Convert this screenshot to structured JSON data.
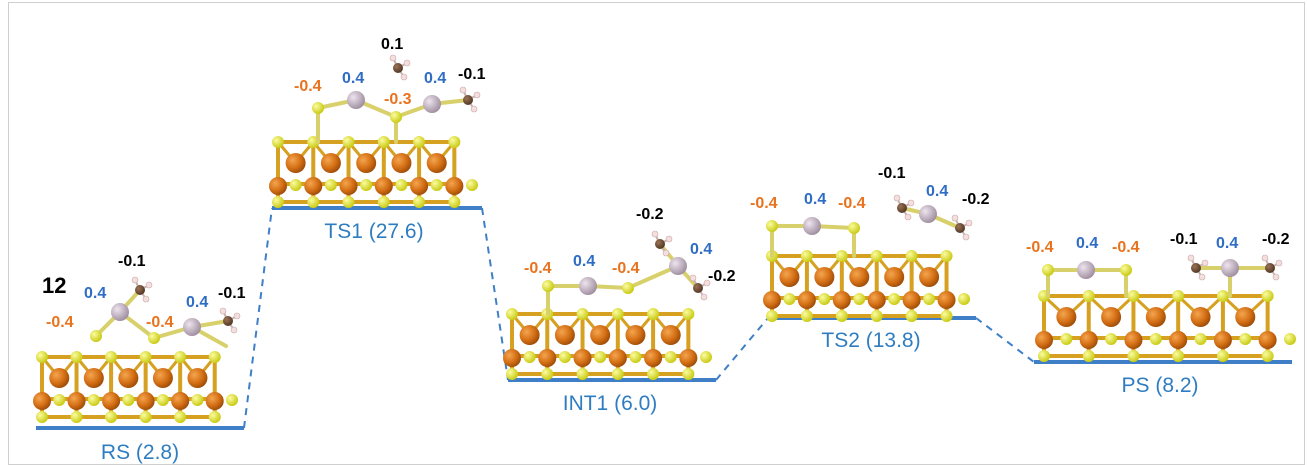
{
  "colors": {
    "level": "#2f7dc0",
    "dash": "#2f7dc0",
    "o_charge": "#e8731f",
    "metal_charge": "#2f6dc4",
    "ch3_charge": "#000000",
    "sulfur": "#dfe21a",
    "metal": "#d9741c",
    "adatom": "#b9a9b9",
    "carbon": "#6b4a33",
    "hydrogen": "#f2d7d7"
  },
  "figure_label": "12",
  "states": [
    {
      "id": "rs",
      "label": "RS (2.8)"
    },
    {
      "id": "ts1",
      "label": "TS1 (27.6)"
    },
    {
      "id": "int1",
      "label": "INT1 (6.0)"
    },
    {
      "id": "ts2",
      "label": "TS2 (13.8)"
    },
    {
      "id": "ps",
      "label": "PS (8.2)"
    }
  ],
  "charges": {
    "rs": [
      "-0.4",
      "0.4",
      "-0.1",
      "-0.4",
      "0.4",
      "-0.1"
    ],
    "ts1": [
      "-0.4",
      "0.4",
      "0.1",
      "-0.3",
      "0.4",
      "-0.1"
    ],
    "int1": [
      "-0.4",
      "0.4",
      "-0.4",
      "-0.2",
      "0.4",
      "-0.2"
    ],
    "ts2": [
      "-0.4",
      "0.4",
      "-0.4",
      "-0.1",
      "0.4",
      "-0.2"
    ],
    "ps": [
      "-0.4",
      "0.4",
      "-0.4",
      "-0.1",
      "0.4",
      "-0.2"
    ]
  }
}
